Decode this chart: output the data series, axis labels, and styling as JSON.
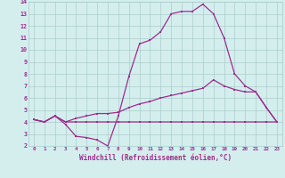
{
  "xlabel": "Windchill (Refroidissement éolien,°C)",
  "x": [
    0,
    1,
    2,
    3,
    4,
    5,
    6,
    7,
    8,
    9,
    10,
    11,
    12,
    13,
    14,
    15,
    16,
    17,
    18,
    19,
    20,
    21,
    22,
    23
  ],
  "line_main": [
    4.2,
    4.0,
    4.5,
    3.8,
    2.8,
    2.7,
    2.5,
    2.0,
    4.5,
    7.8,
    10.5,
    10.8,
    11.5,
    13.0,
    13.2,
    13.2,
    13.8,
    13.0,
    11.0,
    8.0,
    7.0,
    6.5,
    5.2,
    4.0
  ],
  "line_mid": [
    4.2,
    4.0,
    4.5,
    4.0,
    4.3,
    4.5,
    4.7,
    4.7,
    4.8,
    5.2,
    5.5,
    5.7,
    6.0,
    6.2,
    6.4,
    6.6,
    6.8,
    7.5,
    7.0,
    6.7,
    6.5,
    6.5,
    5.2,
    4.0
  ],
  "line_flat": [
    4.2,
    4.0,
    4.5,
    4.0,
    4.0,
    4.0,
    4.0,
    4.0,
    4.0,
    4.0,
    4.0,
    4.0,
    4.0,
    4.0,
    4.0,
    4.0,
    4.0,
    4.0,
    4.0,
    4.0,
    4.0,
    4.0,
    4.0,
    4.0
  ],
  "color": "#9b2d8e",
  "bg_color": "#d4eeee",
  "grid_color": "#aacccc",
  "ylim": [
    2,
    14
  ],
  "xlim_min": -0.5,
  "xlim_max": 23.5,
  "yticks": [
    2,
    3,
    4,
    5,
    6,
    7,
    8,
    9,
    10,
    11,
    12,
    13,
    14
  ],
  "xticks": [
    0,
    1,
    2,
    3,
    4,
    5,
    6,
    7,
    8,
    9,
    10,
    11,
    12,
    13,
    14,
    15,
    16,
    17,
    18,
    19,
    20,
    21,
    22,
    23
  ]
}
